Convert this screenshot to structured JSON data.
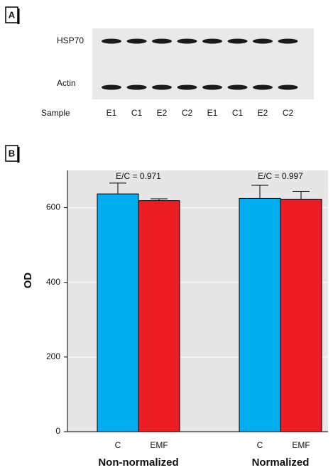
{
  "panel_a": {
    "label": "A",
    "rows": [
      "HSP70",
      "Actin"
    ],
    "sample_label": "Sample",
    "samples": [
      "E1",
      "C1",
      "E2",
      "C2",
      "E1",
      "C1",
      "E2",
      "C2"
    ]
  },
  "chart_data": {
    "type": "bar",
    "label": "B",
    "y_label": "OD",
    "categories": [
      "Non-normalized",
      "Normalized"
    ],
    "annotations": [
      "E/C = 0.971",
      "E/C = 0.997"
    ],
    "series": [
      {
        "name": "C",
        "color": "#00aeef",
        "values": [
          637,
          625
        ],
        "errors": [
          29,
          35
        ]
      },
      {
        "name": "EMF",
        "color": "#ed1c24",
        "values": [
          619,
          623
        ],
        "errors": [
          5,
          21
        ]
      }
    ],
    "ylim": [
      0,
      700
    ],
    "yticks": [
      0,
      200,
      400,
      600
    ],
    "grid": true
  }
}
